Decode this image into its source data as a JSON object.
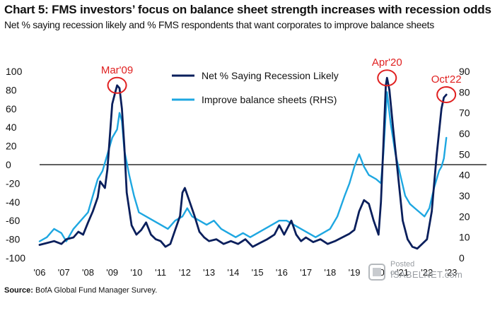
{
  "header": {
    "title": "Chart 5: FMS investors’ focus on balance sheet strength increases with recession odds",
    "subtitle": "Net % saying recession likely and % FMS respondents that want corporates to improve balance sheets"
  },
  "footer": {
    "source_label": "Source:",
    "source_text": "BofA Global Fund Manager Survey."
  },
  "watermark": {
    "posted": "Posted on",
    "site": "ISABELNET.com"
  },
  "colors": {
    "recession": "#0a1f5c",
    "balance": "#1ea7e1",
    "annotation": "#e02020",
    "axis": "#000000"
  },
  "chart_data": {
    "type": "line",
    "x_ticks": [
      "'06",
      "'07",
      "'08",
      "'09",
      "'10",
      "'11",
      "'12",
      "'13",
      "'14",
      "'15",
      "'16",
      "'17",
      "'18",
      "'19",
      "'20",
      "'21",
      "'22",
      "'23"
    ],
    "xlim": [
      2006,
      2023
    ],
    "ylim_left": [
      -100,
      100
    ],
    "yticks_left": [
      -100,
      -80,
      -60,
      -40,
      -20,
      0,
      20,
      40,
      60,
      80,
      100
    ],
    "ylim_right": [
      0,
      90
    ],
    "yticks_right": [
      0,
      10,
      20,
      30,
      40,
      50,
      60,
      70,
      80,
      90
    ],
    "legend_position": "top-center",
    "zero_line": true,
    "series": [
      {
        "name": "Net % Saying Recession Likely",
        "axis": "left",
        "color": "#0a1f5c",
        "points": [
          [
            2006.0,
            -86
          ],
          [
            2006.3,
            -84
          ],
          [
            2006.6,
            -82
          ],
          [
            2006.9,
            -85
          ],
          [
            2007.1,
            -80
          ],
          [
            2007.4,
            -78
          ],
          [
            2007.6,
            -72
          ],
          [
            2007.8,
            -75
          ],
          [
            2008.0,
            -62
          ],
          [
            2008.2,
            -50
          ],
          [
            2008.4,
            -35
          ],
          [
            2008.5,
            -18
          ],
          [
            2008.7,
            -25
          ],
          [
            2008.8,
            -5
          ],
          [
            2008.9,
            30
          ],
          [
            2009.0,
            65
          ],
          [
            2009.1,
            75
          ],
          [
            2009.2,
            85
          ],
          [
            2009.3,
            82
          ],
          [
            2009.4,
            60
          ],
          [
            2009.5,
            20
          ],
          [
            2009.6,
            -30
          ],
          [
            2009.8,
            -65
          ],
          [
            2010.0,
            -75
          ],
          [
            2010.2,
            -70
          ],
          [
            2010.4,
            -62
          ],
          [
            2010.6,
            -75
          ],
          [
            2010.8,
            -80
          ],
          [
            2011.0,
            -82
          ],
          [
            2011.2,
            -88
          ],
          [
            2011.4,
            -85
          ],
          [
            2011.6,
            -70
          ],
          [
            2011.8,
            -55
          ],
          [
            2011.9,
            -30
          ],
          [
            2012.0,
            -25
          ],
          [
            2012.2,
            -40
          ],
          [
            2012.4,
            -55
          ],
          [
            2012.6,
            -72
          ],
          [
            2012.8,
            -78
          ],
          [
            2013.0,
            -82
          ],
          [
            2013.3,
            -80
          ],
          [
            2013.6,
            -85
          ],
          [
            2013.9,
            -82
          ],
          [
            2014.2,
            -85
          ],
          [
            2014.5,
            -80
          ],
          [
            2014.8,
            -88
          ],
          [
            2015.1,
            -84
          ],
          [
            2015.4,
            -80
          ],
          [
            2015.7,
            -75
          ],
          [
            2015.9,
            -65
          ],
          [
            2016.1,
            -75
          ],
          [
            2016.4,
            -60
          ],
          [
            2016.6,
            -75
          ],
          [
            2016.8,
            -82
          ],
          [
            2017.0,
            -78
          ],
          [
            2017.3,
            -83
          ],
          [
            2017.6,
            -80
          ],
          [
            2017.9,
            -85
          ],
          [
            2018.2,
            -82
          ],
          [
            2018.5,
            -78
          ],
          [
            2018.8,
            -74
          ],
          [
            2019.0,
            -70
          ],
          [
            2019.2,
            -50
          ],
          [
            2019.4,
            -38
          ],
          [
            2019.6,
            -42
          ],
          [
            2019.8,
            -60
          ],
          [
            2020.0,
            -75
          ],
          [
            2020.1,
            -40
          ],
          [
            2020.2,
            20
          ],
          [
            2020.3,
            85
          ],
          [
            2020.35,
            93
          ],
          [
            2020.45,
            80
          ],
          [
            2020.6,
            40
          ],
          [
            2020.8,
            -10
          ],
          [
            2021.0,
            -60
          ],
          [
            2021.2,
            -80
          ],
          [
            2021.4,
            -88
          ],
          [
            2021.6,
            -90
          ],
          [
            2021.8,
            -85
          ],
          [
            2022.0,
            -80
          ],
          [
            2022.2,
            -50
          ],
          [
            2022.3,
            -20
          ],
          [
            2022.4,
            10
          ],
          [
            2022.5,
            35
          ],
          [
            2022.6,
            60
          ],
          [
            2022.7,
            72
          ],
          [
            2022.8,
            75
          ]
        ]
      },
      {
        "name": "Improve balance sheets (RHS)",
        "axis": "right",
        "color": "#1ea7e1",
        "points": [
          [
            2006.0,
            8
          ],
          [
            2006.3,
            10
          ],
          [
            2006.6,
            14
          ],
          [
            2006.9,
            12
          ],
          [
            2007.1,
            8
          ],
          [
            2007.4,
            14
          ],
          [
            2007.7,
            18
          ],
          [
            2008.0,
            22
          ],
          [
            2008.2,
            30
          ],
          [
            2008.4,
            38
          ],
          [
            2008.6,
            42
          ],
          [
            2008.8,
            50
          ],
          [
            2009.0,
            58
          ],
          [
            2009.2,
            62
          ],
          [
            2009.3,
            70
          ],
          [
            2009.4,
            66
          ],
          [
            2009.5,
            52
          ],
          [
            2009.7,
            40
          ],
          [
            2009.9,
            30
          ],
          [
            2010.1,
            22
          ],
          [
            2010.4,
            20
          ],
          [
            2010.7,
            18
          ],
          [
            2011.0,
            16
          ],
          [
            2011.3,
            14
          ],
          [
            2011.6,
            18
          ],
          [
            2011.9,
            20
          ],
          [
            2012.1,
            24
          ],
          [
            2012.3,
            20
          ],
          [
            2012.6,
            18
          ],
          [
            2012.9,
            16
          ],
          [
            2013.2,
            18
          ],
          [
            2013.5,
            14
          ],
          [
            2013.8,
            12
          ],
          [
            2014.1,
            10
          ],
          [
            2014.4,
            12
          ],
          [
            2014.7,
            10
          ],
          [
            2015.0,
            12
          ],
          [
            2015.3,
            14
          ],
          [
            2015.6,
            16
          ],
          [
            2015.9,
            18
          ],
          [
            2016.2,
            18
          ],
          [
            2016.5,
            16
          ],
          [
            2016.8,
            14
          ],
          [
            2017.1,
            12
          ],
          [
            2017.4,
            10
          ],
          [
            2017.7,
            12
          ],
          [
            2018.0,
            14
          ],
          [
            2018.3,
            20
          ],
          [
            2018.6,
            30
          ],
          [
            2018.8,
            36
          ],
          [
            2019.0,
            44
          ],
          [
            2019.2,
            50
          ],
          [
            2019.4,
            44
          ],
          [
            2019.6,
            40
          ],
          [
            2019.9,
            38
          ],
          [
            2020.1,
            36
          ],
          [
            2020.2,
            50
          ],
          [
            2020.35,
            80
          ],
          [
            2020.5,
            65
          ],
          [
            2020.7,
            50
          ],
          [
            2020.9,
            40
          ],
          [
            2021.1,
            30
          ],
          [
            2021.3,
            26
          ],
          [
            2021.5,
            24
          ],
          [
            2021.7,
            22
          ],
          [
            2021.9,
            20
          ],
          [
            2022.1,
            24
          ],
          [
            2022.3,
            34
          ],
          [
            2022.5,
            42
          ],
          [
            2022.6,
            44
          ],
          [
            2022.7,
            48
          ],
          [
            2022.8,
            58
          ]
        ]
      }
    ],
    "annotations": [
      {
        "label": "Mar'09",
        "x": 2009.2,
        "series": "Net % Saying Recession Likely"
      },
      {
        "label": "Apr'20",
        "x": 2020.35,
        "series": "Net % Saying Recession Likely"
      },
      {
        "label": "Oct'22",
        "x": 2022.8,
        "series": "Net % Saying Recession Likely"
      }
    ]
  }
}
